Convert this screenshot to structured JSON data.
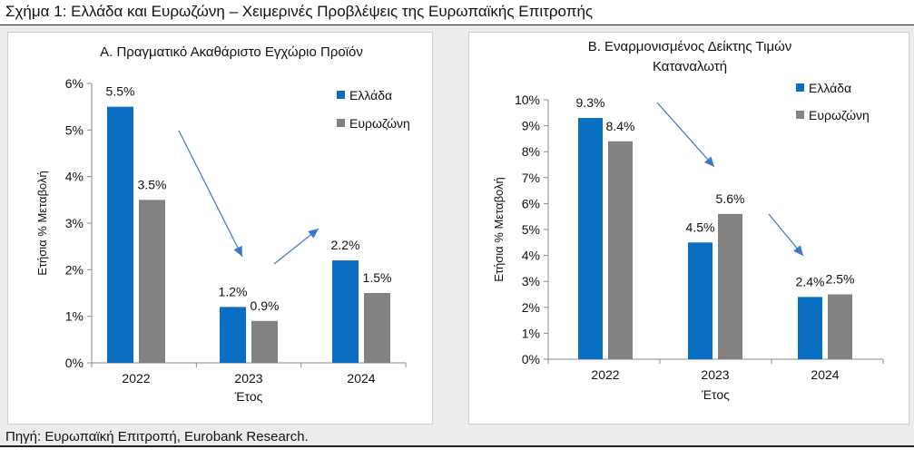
{
  "figure_title": "Σχήμα 1: Ελλάδα και Ευρωζώνη – Χειμερινές Προβλέψεις της Ευρωπαϊκής Επιτροπής",
  "source": "Πηγή: Ευρωπαϊκή Επιτροπή, Eurobank Research.",
  "colors": {
    "greece": "#0a6fc2",
    "eurozone": "#828282",
    "arrow": "#3a78c9",
    "axis": "#8a8a8a"
  },
  "chart_data": [
    {
      "type": "bar",
      "title": "Α. Πραγματικό Ακαθάριστο Εγχώριο Προϊόν",
      "title_lines": [
        "Α. Πραγματικό Ακαθάριστο Εγχώριο Προϊόν"
      ],
      "xlabel": "Έτος",
      "ylabel": "Ετήσια % Μεταβολή",
      "categories": [
        "2022",
        "2023",
        "2024"
      ],
      "ylim": [
        0,
        6
      ],
      "ytick_labels": [
        "0%",
        "1%",
        "2%",
        "3%",
        "4%",
        "5%",
        "6%"
      ],
      "legend_position": "top-right",
      "grid": false,
      "series": [
        {
          "name": "Ελλάδα",
          "values": [
            5.5,
            1.2,
            2.2
          ],
          "labels": [
            "5.5%",
            "1.2%",
            "2.2%"
          ]
        },
        {
          "name": "Ευρωζώνη",
          "values": [
            3.5,
            0.9,
            1.5
          ],
          "labels": [
            "3.5%",
            "0.9%",
            "1.5%"
          ]
        }
      ]
    },
    {
      "type": "bar",
      "title": "Β. Εναρμονισμένος Δείκτης Τιμών Καταναλωτή",
      "title_lines": [
        "Β. Εναρμονισμένος Δείκτης Τιμών",
        "Καταναλωτή"
      ],
      "xlabel": "Έτος",
      "ylabel": "Ετήσια % Μεταβολή",
      "categories": [
        "2022",
        "2023",
        "2024"
      ],
      "ylim": [
        0,
        10
      ],
      "ytick_labels": [
        "0%",
        "1%",
        "2%",
        "3%",
        "4%",
        "5%",
        "6%",
        "7%",
        "8%",
        "9%",
        "10%"
      ],
      "legend_position": "top-right",
      "grid": false,
      "series": [
        {
          "name": "Ελλάδα",
          "values": [
            9.3,
            4.5,
            2.4
          ],
          "labels": [
            "9.3%",
            "4.5%",
            "2.4%"
          ]
        },
        {
          "name": "Ευρωζώνη",
          "values": [
            8.4,
            5.6,
            2.5
          ],
          "labels": [
            "8.4%",
            "5.6%",
            "2.5%"
          ]
        }
      ]
    }
  ]
}
